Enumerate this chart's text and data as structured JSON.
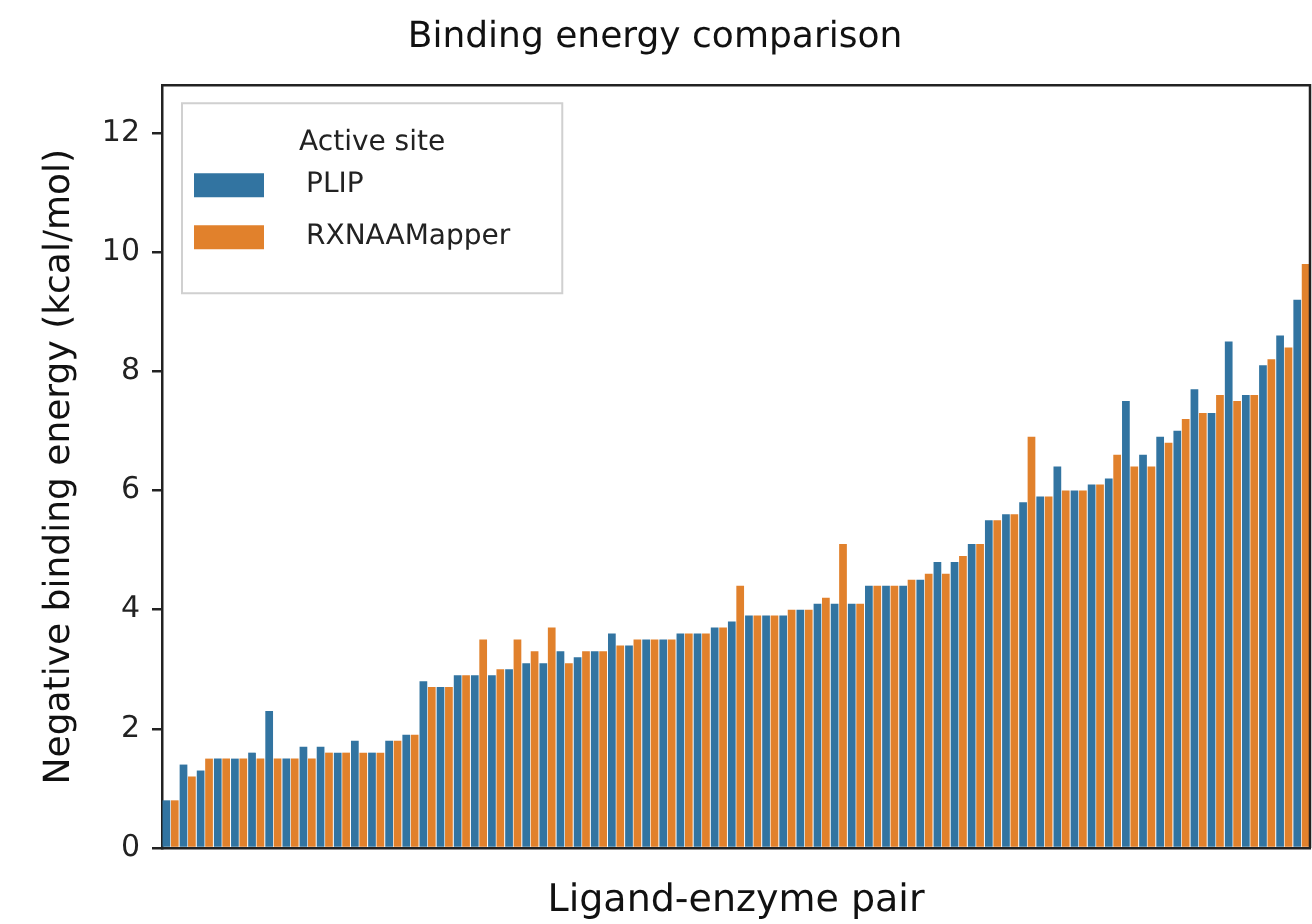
{
  "chart_data": {
    "type": "bar",
    "title": "Binding energy comparison",
    "xlabel": "Ligand-enzyme pair",
    "ylabel": "Negative binding energy (kcal/mol)",
    "legend_title": "Active site",
    "legend": "top left",
    "tick_labels": "y",
    "categories": [
      null,
      null,
      null,
      null,
      null,
      null,
      null,
      null,
      null,
      null,
      null,
      null,
      null,
      null,
      null,
      null,
      null,
      null,
      null,
      null,
      null,
      null,
      null,
      null,
      null,
      null,
      null,
      null,
      null,
      null,
      null,
      null,
      null,
      null,
      null,
      null,
      null,
      null,
      null,
      null,
      null,
      null,
      null,
      null,
      null,
      null,
      null,
      null,
      null,
      null,
      null,
      null,
      null,
      null,
      null,
      null,
      null,
      null,
      null,
      null,
      null,
      null,
      null,
      null,
      null,
      null,
      null
    ],
    "series": [
      {
        "name": "PLIP",
        "color": "#3274a1",
        "values": [
          0.8,
          1.4,
          1.3,
          1.5,
          1.5,
          1.6,
          2.3,
          1.5,
          1.7,
          1.7,
          1.6,
          1.8,
          1.6,
          1.8,
          1.9,
          2.8,
          2.7,
          2.9,
          2.9,
          2.9,
          3.0,
          3.1,
          3.1,
          3.3,
          3.2,
          3.3,
          3.6,
          3.4,
          3.5,
          3.5,
          3.6,
          3.6,
          3.7,
          3.8,
          3.9,
          3.9,
          3.9,
          4.0,
          4.1,
          4.1,
          4.1,
          4.4,
          4.4,
          4.4,
          4.5,
          4.8,
          4.8,
          5.1,
          5.5,
          5.6,
          5.8,
          5.9,
          6.4,
          6.0,
          6.1,
          6.2,
          7.5,
          6.6,
          6.9,
          7.0,
          7.7,
          7.3,
          8.5,
          7.6,
          8.1,
          8.6,
          9.2
        ]
      },
      {
        "name": "RXNAAMapper",
        "color": "#e1812c",
        "values": [
          0.8,
          1.2,
          1.5,
          1.5,
          1.5,
          1.5,
          1.5,
          1.5,
          1.5,
          1.6,
          1.6,
          1.6,
          1.6,
          1.8,
          1.9,
          2.7,
          2.7,
          2.9,
          3.5,
          3.0,
          3.5,
          3.3,
          3.7,
          3.1,
          3.3,
          3.3,
          3.4,
          3.5,
          3.5,
          3.5,
          3.6,
          3.6,
          3.7,
          4.4,
          3.9,
          3.9,
          4.0,
          4.0,
          4.2,
          5.1,
          4.1,
          4.4,
          4.4,
          4.5,
          4.6,
          4.6,
          4.9,
          5.1,
          5.5,
          5.6,
          6.9,
          5.9,
          6.0,
          6.0,
          6.1,
          6.6,
          6.4,
          6.4,
          6.8,
          7.2,
          7.3,
          7.6,
          7.5,
          7.6,
          8.2,
          8.4,
          9.8
        ]
      }
    ],
    "ylim": [
      0,
      12.8
    ],
    "yticks": [
      0,
      2,
      4,
      6,
      8,
      10,
      12
    ]
  }
}
